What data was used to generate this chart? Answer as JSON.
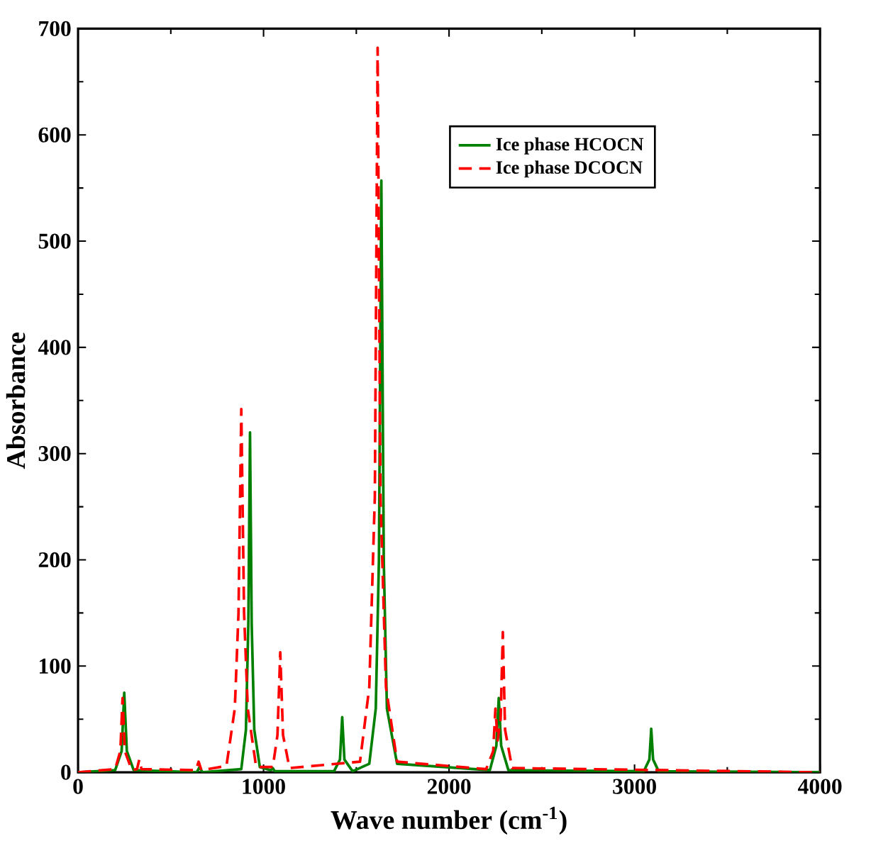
{
  "chart_data": {
    "type": "line",
    "xlabel": "Wave number (cm$^{-1}$)",
    "ylabel": "Absorbance",
    "xlim": [
      0,
      4000
    ],
    "ylim": [
      0,
      700
    ],
    "xticks": [
      0,
      1000,
      2000,
      3000,
      4000
    ],
    "yticks": [
      0,
      100,
      200,
      300,
      400,
      500,
      600,
      700
    ],
    "legend": "top right",
    "grid": false,
    "marker": "none",
    "series": [
      {
        "name": "Ice phase HCOCN",
        "color": "#008000",
        "line_style": "solid",
        "x": [
          0,
          200,
          235,
          249,
          263,
          300,
          640,
          655,
          670,
          880,
          905,
          918,
          927,
          936,
          950,
          980,
          1040,
          1050,
          1060,
          1380,
          1412,
          1424,
          1436,
          1480,
          1570,
          1605,
          1622,
          1635,
          1648,
          1665,
          1720,
          2220,
          2255,
          2268,
          2281,
          2320,
          3050,
          3080,
          3090,
          3100,
          3130,
          4000
        ],
        "values": [
          0,
          2,
          20,
          75,
          20,
          2,
          0,
          5,
          0,
          3,
          40,
          140,
          320,
          140,
          40,
          5,
          2,
          4,
          1,
          1,
          12,
          52,
          12,
          1,
          8,
          60,
          200,
          557,
          200,
          60,
          8,
          2,
          25,
          70,
          25,
          2,
          1,
          12,
          41,
          12,
          1,
          0
        ]
      },
      {
        "name": "Ice phase DCOCN",
        "color": "#ff0000",
        "line_style": "dashed",
        "x": [
          0,
          200,
          228,
          240,
          252,
          290,
          318,
          330,
          342,
          635,
          650,
          665,
          800,
          845,
          865,
          880,
          895,
          915,
          960,
          1050,
          1075,
          1090,
          1105,
          1140,
          1520,
          1570,
          1600,
          1615,
          1630,
          1660,
          1720,
          2200,
          2238,
          2250,
          2262,
          2278,
          2290,
          2302,
          2340,
          4000
        ],
        "values": [
          0,
          3,
          20,
          70,
          20,
          2,
          3,
          12,
          3,
          2,
          10,
          2,
          6,
          60,
          150,
          342,
          150,
          60,
          5,
          5,
          35,
          113,
          35,
          4,
          10,
          80,
          260,
          682,
          260,
          80,
          10,
          3,
          20,
          60,
          30,
          50,
          132,
          40,
          4,
          0
        ]
      }
    ]
  }
}
